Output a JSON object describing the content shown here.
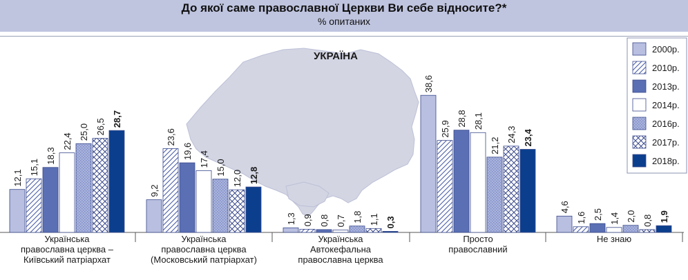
{
  "title": "До якої саме православної Церкви Ви себе відносите?*",
  "subtitle": "% опитаних",
  "map_label": "УКРАЇНА",
  "chart_data": {
    "type": "bar",
    "title": "До якої саме православної Церкви Ви себе відносите?*",
    "subtitle": "% опитаних",
    "grid": false,
    "legend_placement": "top-right",
    "categories": [
      [
        "Українська",
        "православна церква –",
        "Київський патріархат"
      ],
      [
        "Українська",
        "православна церква",
        "(Московський патріархат)"
      ],
      [
        "Українська",
        "Автокефальна",
        "православна церква"
      ],
      [
        "Просто",
        "православний"
      ],
      [
        "Не знаю"
      ]
    ],
    "series": [
      {
        "name": "2000р.",
        "values": [
          12.1,
          9.2,
          1.3,
          38.6,
          4.6
        ],
        "labels": [
          "12,1",
          "9,2",
          "1,3",
          "38,6",
          "4,6"
        ],
        "bold": false,
        "color": "#b8bfe0",
        "pattern": "solid-light"
      },
      {
        "name": "2010р.",
        "values": [
          15.1,
          23.6,
          0.9,
          25.9,
          1.6
        ],
        "labels": [
          "15,1",
          "23,6",
          "0,9",
          "25,9",
          "1,6"
        ],
        "bold": false,
        "color": "#4a5da8",
        "pattern": "hatch"
      },
      {
        "name": "2013р.",
        "values": [
          18.3,
          19.6,
          0.8,
          28.8,
          2.5
        ],
        "labels": [
          "18,3",
          "19,6",
          "0,8",
          "28,8",
          "2,5"
        ],
        "bold": false,
        "color": "#5a6fb4",
        "pattern": "solid-mid"
      },
      {
        "name": "2014р.",
        "values": [
          22.4,
          17.4,
          0.7,
          28.1,
          1.4
        ],
        "labels": [
          "22,4",
          "17,4",
          "0,7",
          "28,1",
          "1,4"
        ],
        "bold": false,
        "color": "#ffffff",
        "pattern": "white"
      },
      {
        "name": "2016р.",
        "values": [
          25.0,
          15.0,
          1.8,
          21.2,
          2.0
        ],
        "labels": [
          "25,0",
          "15,0",
          "1,8",
          "21,2",
          "2,0"
        ],
        "bold": false,
        "color": "#9aa6d6",
        "pattern": "dots"
      },
      {
        "name": "2017р.",
        "values": [
          26.5,
          12.0,
          1.1,
          24.3,
          0.8
        ],
        "labels": [
          "26,5",
          "12,0",
          "1,1",
          "24,3",
          "0,8"
        ],
        "bold": false,
        "color": "#3a4a8c",
        "pattern": "crosshatch"
      },
      {
        "name": "2018р.",
        "values": [
          28.7,
          12.8,
          0.3,
          23.4,
          1.9
        ],
        "labels": [
          "28,7",
          "12,8",
          "0,3",
          "23,4",
          "1,9"
        ],
        "bold": true,
        "color": "#0b3f8e",
        "pattern": "solid-dark"
      }
    ]
  }
}
